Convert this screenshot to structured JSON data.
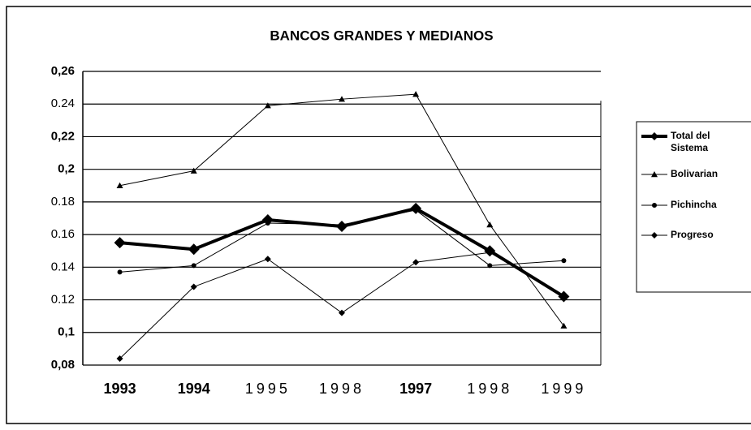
{
  "chart_data": {
    "type": "line",
    "title": "BANCOS GRANDES Y MEDIANOS",
    "categories": [
      "1993",
      "1994",
      "1995",
      "1998",
      "1997",
      "1998",
      "1999"
    ],
    "ylim": [
      0.08,
      0.26
    ],
    "yticks": [
      {
        "value": 0.26,
        "label": "0,26"
      },
      {
        "value": 0.24,
        "label": "0.24"
      },
      {
        "value": 0.22,
        "label": "0,22"
      },
      {
        "value": 0.2,
        "label": "0,2"
      },
      {
        "value": 0.18,
        "label": "0.18"
      },
      {
        "value": 0.16,
        "label": "0.16"
      },
      {
        "value": 0.14,
        "label": "0.14"
      },
      {
        "value": 0.12,
        "label": "0.12"
      },
      {
        "value": 0.1,
        "label": "0,1"
      },
      {
        "value": 0.08,
        "label": "0,08"
      }
    ],
    "grid": true,
    "series": [
      {
        "name": "Total del Sistema",
        "color": "#000000",
        "marker": "diamond",
        "line_width": 4,
        "values": [
          0.155,
          0.151,
          0.169,
          0.165,
          0.176,
          0.15,
          0.122
        ]
      },
      {
        "name": "Bolivarian",
        "color": "#000000",
        "marker": "triangle",
        "line_width": 1,
        "values": [
          0.19,
          0.199,
          0.239,
          0.243,
          0.246,
          0.166,
          0.104
        ]
      },
      {
        "name": "Pichincha",
        "color": "#000000",
        "marker": "circle",
        "line_width": 1,
        "values": [
          0.137,
          0.141,
          0.167,
          0.166,
          0.175,
          0.141,
          0.144
        ]
      },
      {
        "name": "Progreso",
        "color": "#000000",
        "marker": "diamond",
        "line_width": 1,
        "values": [
          0.084,
          0.128,
          0.145,
          0.112,
          0.143,
          0.149,
          0.122
        ]
      }
    ]
  }
}
